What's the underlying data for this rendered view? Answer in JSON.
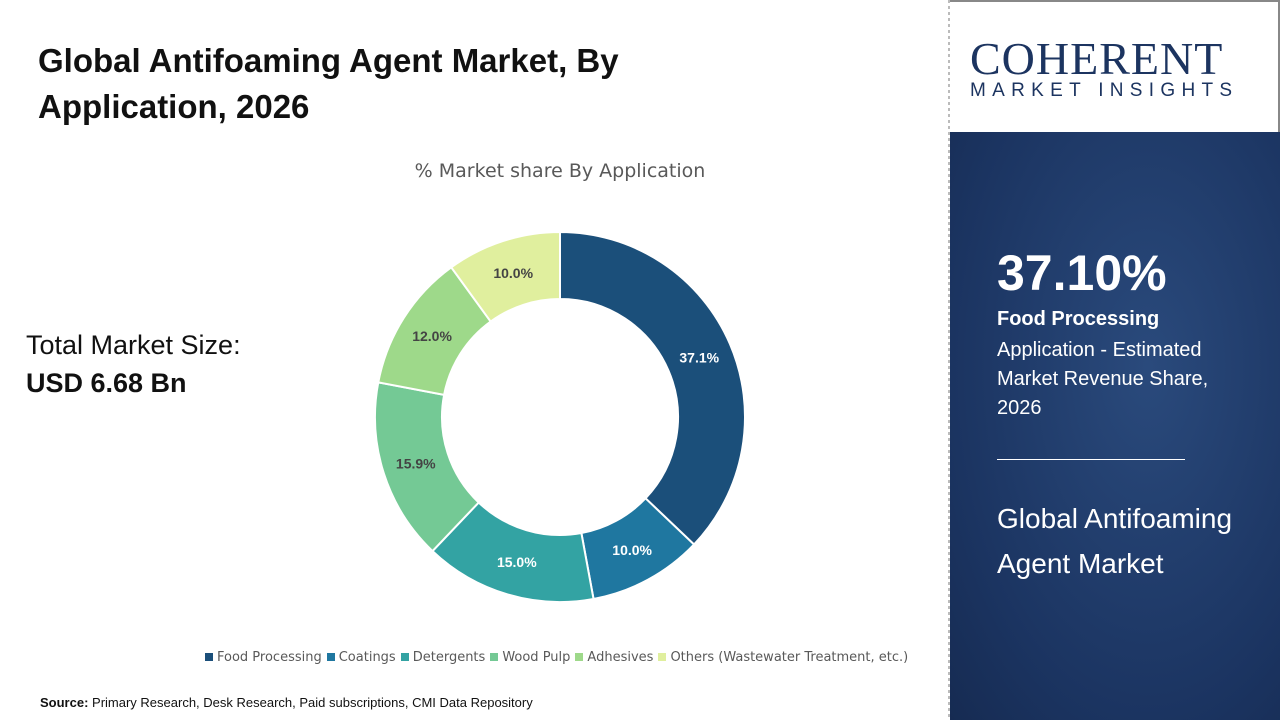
{
  "title": "Global Antifoaming Agent Market, By Application, 2026",
  "total_market": {
    "label": "Total Market Size:",
    "value": "USD 6.68 Bn"
  },
  "source": {
    "label": "Source:",
    "text": " Primary Research, Desk Research, Paid subscriptions, CMI Data Repository"
  },
  "logo": {
    "word": "COHERENT",
    "tagline": "MARKET INSIGHTS"
  },
  "highlight": {
    "percent": "37.10%",
    "segment": "Food Processing",
    "description": "Application - Estimated Market Revenue Share, 2026",
    "market": "Global Antifoaming Agent Market"
  },
  "chart_data": {
    "type": "pie",
    "donut": true,
    "title": "% Market share By Application",
    "categories": [
      "Food Processing",
      "Coatings",
      "Detergents",
      "Wood Pulp",
      "Adhesives",
      "Others (Wastewater Treatment, etc.)"
    ],
    "values": [
      37.1,
      10.0,
      15.0,
      15.9,
      12.0,
      10.0
    ],
    "labels": [
      "37.1%",
      "10.0%",
      "15.0%",
      "15.9%",
      "12.0%",
      "10.0%"
    ],
    "colors": [
      "#1b4f7a",
      "#1f77a0",
      "#33a3a3",
      "#74c995",
      "#9ed98a",
      "#e0ef9e"
    ],
    "legend_position": "bottom"
  }
}
